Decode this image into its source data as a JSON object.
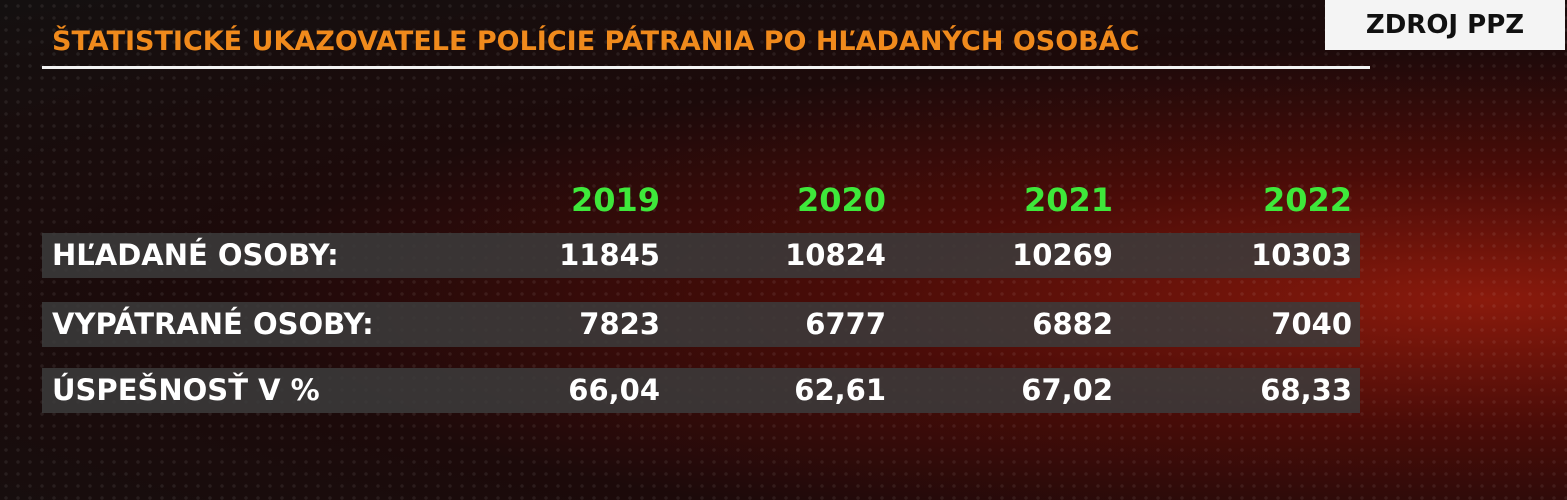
{
  "header": {
    "title": "ŠTATISTICKÉ UKAZOVATELE POLÍCIE PÁTRANIA PO HĽADANÝCH OSOBÁC",
    "source": "ZDROJ PPZ"
  },
  "table": {
    "columns": [
      "2019",
      "2020",
      "2021",
      "2022"
    ],
    "rows": [
      [
        "HĽADANÉ OSOBY:",
        "11845",
        "10824",
        "10269",
        "10303"
      ],
      [
        "VYPÁTRANÉ OSOBY:",
        "7823",
        "6777",
        "6882",
        "7040"
      ],
      [
        "ÚSPEŠNOSŤ V %",
        "66,04",
        "62,61",
        "67,02",
        "68,33"
      ]
    ]
  }
}
